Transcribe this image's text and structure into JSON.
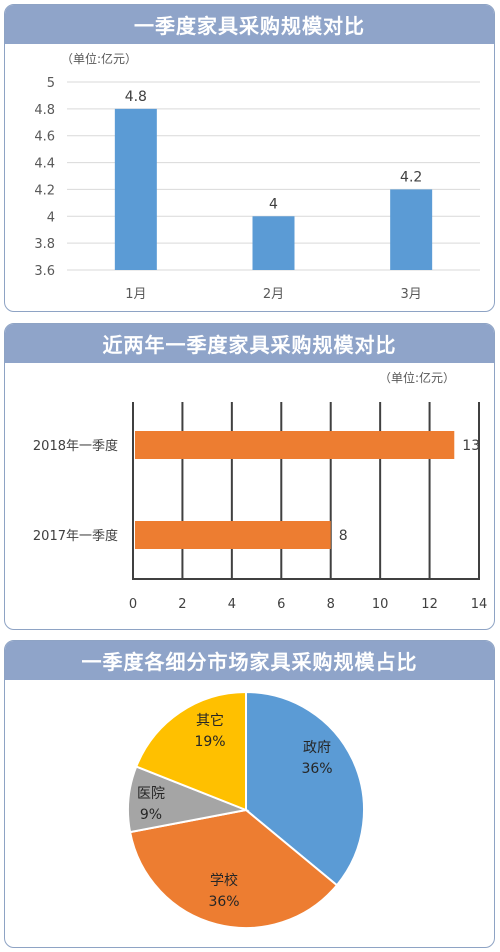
{
  "chart_data": [
    {
      "type": "bar",
      "title": "一季度家具采购规模对比",
      "unit_label": "（单位:亿元）",
      "categories": [
        "1月",
        "2月",
        "3月"
      ],
      "values": [
        4.8,
        4,
        4.2
      ],
      "data_labels": [
        "4.8",
        "4",
        "4.2"
      ],
      "ylim": [
        3.6,
        5
      ],
      "yticks": [
        "3.6",
        "3.8",
        "4",
        "4.2",
        "4.4",
        "4.6",
        "4.8",
        "5"
      ],
      "color": "#5b9bd5",
      "grid": true
    },
    {
      "type": "bar",
      "orientation": "horizontal",
      "title": "近两年一季度家具采购规模对比",
      "unit_label": "（单位:亿元）",
      "categories": [
        "2018年一季度",
        "2017年一季度"
      ],
      "values": [
        13,
        8
      ],
      "data_labels": [
        "13",
        "8"
      ],
      "xlim": [
        0,
        14
      ],
      "xticks": [
        "0",
        "2",
        "4",
        "6",
        "8",
        "10",
        "12",
        "14"
      ],
      "color": "#ed7d31",
      "grid": true
    },
    {
      "type": "pie",
      "title": "一季度各细分市场家具采购规模占比",
      "slices": [
        {
          "label": "政府",
          "value": 36,
          "pct_label": "36%",
          "color": "#5b9bd5"
        },
        {
          "label": "学校",
          "value": 36,
          "pct_label": "36%",
          "color": "#ed7d31"
        },
        {
          "label": "医院",
          "value": 9,
          "pct_label": "9%",
          "color": "#a5a5a5"
        },
        {
          "label": "其它",
          "value": 19,
          "pct_label": "19%",
          "color": "#ffc000"
        }
      ]
    }
  ]
}
